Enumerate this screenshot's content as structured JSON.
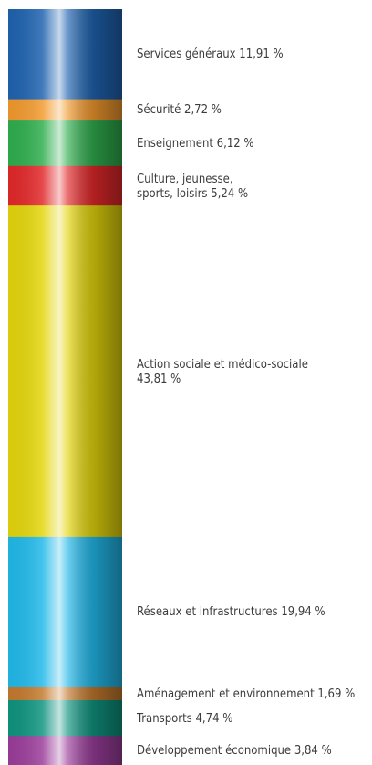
{
  "chart_data": {
    "type": "bar",
    "stacked": true,
    "orientation": "vertical",
    "unit": "%",
    "categories": [
      "Services généraux",
      "Sécurité",
      "Enseignement",
      "Culture, jeunesse, sports, loisirs",
      "Action sociale et médico-sociale",
      "Réseaux et infrastructures",
      "Aménagement et environnement",
      "Transports",
      "Développement économique"
    ],
    "values": [
      11.91,
      2.72,
      6.12,
      5.24,
      43.81,
      19.94,
      1.69,
      4.74,
      3.84
    ],
    "labels": [
      "Services généraux 11,91 %",
      "Sécurité 2,72 %",
      "Enseignement 6,12 %",
      "Culture, jeunesse,\nsports, loisirs 5,24 %",
      "Action sociale et médico-sociale\n43,81 %",
      "Réseaux et infrastructures 19,94 %",
      "Aménagement et environnement 1,69 %",
      "Transports 4,74 %",
      "Développement économique 3,84 %"
    ],
    "colors": [
      "#1f63b0",
      "#f29a2e",
      "#2fae4e",
      "#e2282a",
      "#e4d60c",
      "#21b9ea",
      "#c47a2e",
      "#0f9480",
      "#9b3d9b"
    ],
    "legend": "none"
  }
}
